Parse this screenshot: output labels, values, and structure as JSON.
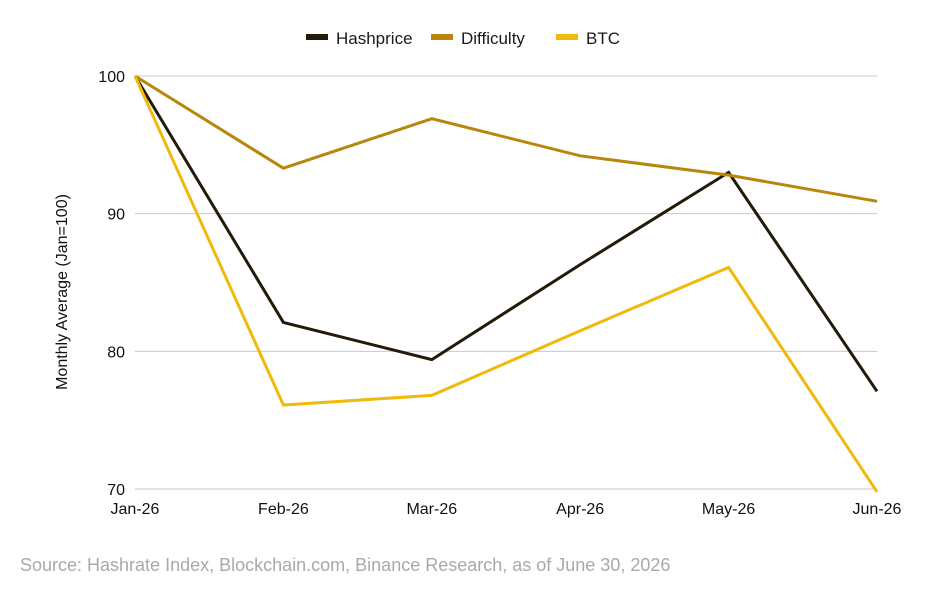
{
  "source_note": "Source: Hashrate Index, Blockchain.com, Binance Research, as of June 30, 2026",
  "chart_data": {
    "type": "line",
    "title": "",
    "xlabel": "",
    "ylabel": "Monthly Average (Jan=100)",
    "categories": [
      "Jan-26",
      "Feb-26",
      "Mar-26",
      "Apr-26",
      "May-26",
      "Jun-26"
    ],
    "ylim": [
      70,
      100
    ],
    "yticks": [
      70,
      80,
      90,
      100
    ],
    "grid": true,
    "legend_position": "top-center",
    "series": [
      {
        "name": "Hashprice",
        "color": "#231a0a",
        "values": [
          100,
          82.1,
          79.4,
          86.3,
          93.0,
          77.1
        ]
      },
      {
        "name": "Difficulty",
        "color": "#b8860b",
        "values": [
          100,
          93.3,
          96.9,
          94.2,
          92.8,
          90.9
        ]
      },
      {
        "name": "BTC",
        "color": "#f0b90b",
        "values": [
          100,
          76.1,
          76.8,
          81.5,
          86.1,
          69.8
        ]
      }
    ]
  }
}
